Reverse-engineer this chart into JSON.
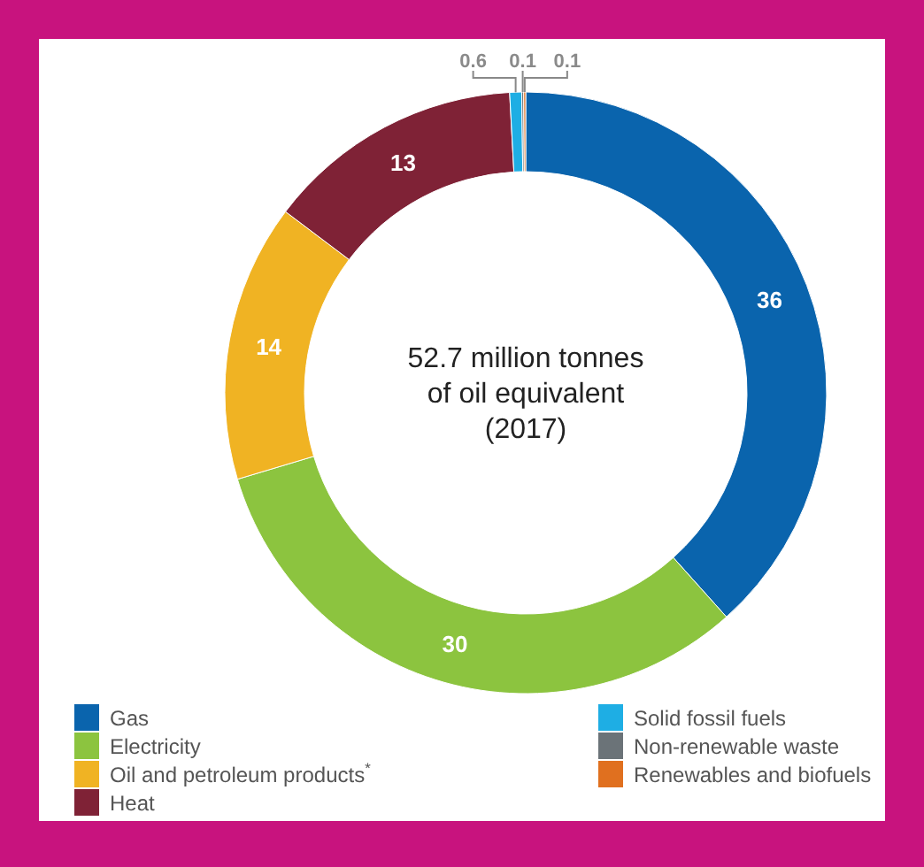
{
  "chart_data": {
    "type": "donut",
    "title": "52.7 million tonnes of oil equivalent (2017)",
    "categories": [
      "Gas",
      "Electricity",
      "Oil and petroleum products$^{*}$",
      "Heat",
      "Solid fossil fuels",
      "Non-renewable waste",
      "Renewables and biofuels"
    ],
    "values": [
      36,
      30,
      14,
      13,
      0.6,
      0.1,
      0.1
    ],
    "colors": [
      "#0a64ad",
      "#8cc43f",
      "#f0b323",
      "#7f2236",
      "#1eaee4",
      "#6b7378",
      "#e0701f"
    ],
    "data_labels": true,
    "legend": "bottom"
  }
}
